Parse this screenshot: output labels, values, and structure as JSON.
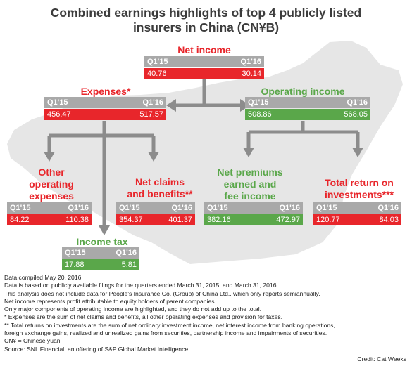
{
  "title": {
    "line1": "Combined earnings highlights of top 4 publicly listed",
    "line2": "insurers in China (CN¥B)"
  },
  "columns": {
    "q1": "Q1'15",
    "q2": "Q1'16"
  },
  "net_income": {
    "label": "Net income",
    "q1": "40.76",
    "q2": "30.14"
  },
  "expenses": {
    "label": "Expenses*",
    "q1": "456.47",
    "q2": "517.57"
  },
  "operating_income": {
    "label": "Operating income",
    "q1": "508.86",
    "q2": "568.05"
  },
  "other_expenses": {
    "line1": "Other",
    "line2": "operating",
    "line3": "expenses",
    "q1": "84.22",
    "q2": "110.38"
  },
  "net_claims": {
    "line1": "Net claims",
    "line2": "and benefits**",
    "q1": "354.37",
    "q2": "401.37"
  },
  "net_premiums": {
    "line1": "Net premiums",
    "line2": "earned and",
    "line3": "fee income",
    "q1": "382.16",
    "q2": "472.97"
  },
  "total_return": {
    "line1": "Total return on",
    "line2": "investments***",
    "q1": "120.77",
    "q2": "84.03"
  },
  "income_tax": {
    "label": "Income tax",
    "q1": "17.88",
    "q2": "5.81"
  },
  "notes": [
    "Data compiled May 20, 2016.",
    "Data is based on publicly available filings for the quarters ended March 31, 2015, and March 31, 2016.",
    "This analysis does not include data for People's Insurance Co. (Group) of China Ltd., which only reports semiannually.",
    "Net income represents profit attributable to equity holders of parent companies.",
    "Only major components of operating income are highlighted, and they do not add up to the total.",
    "* Expenses are the sum of net claims and benefits, all other operating expenses and provision for taxes.",
    "** Total returns on investments are the sum of net ordinary investment income, net interest income from banking operations,",
    "foreign exchange gains, realized and unrealized gains from securities, partnership income and impairments of securities.",
    "CN¥ = Chinese yuan",
    "Source: SNL Financial, an offering of S&P Global Market Intelligence"
  ],
  "credit": "Credit: Cat Weeks",
  "colors": {
    "red": "#e8262b",
    "green": "#5aa74a",
    "header_gray": "#a9a9a9",
    "map": "#e6e6e6",
    "arrow": "#8c8c8c"
  }
}
